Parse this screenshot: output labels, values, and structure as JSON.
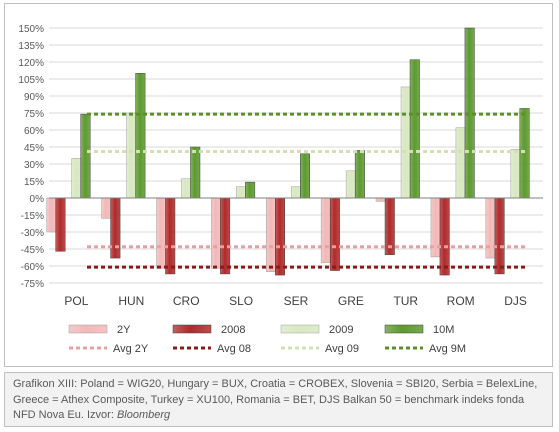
{
  "chart_data": {
    "type": "bar",
    "categories": [
      "POL",
      "HUN",
      "CRO",
      "SLO",
      "SER",
      "GRE",
      "TUR",
      "ROM",
      "DJS"
    ],
    "series": [
      {
        "name": "2Y",
        "color": "#f2b8b8",
        "values": [
          -30,
          -18,
          -62,
          -62,
          -65,
          -57,
          -3,
          -52,
          -53
        ]
      },
      {
        "name": "2008",
        "color": "#b02a2a",
        "values": [
          -47,
          -53,
          -67,
          -67,
          -68,
          -64,
          -50,
          -68,
          -67
        ]
      },
      {
        "name": "2009",
        "color": "#d8e8c0",
        "values": [
          35,
          75,
          17,
          10,
          10,
          24,
          98,
          62,
          43
        ]
      },
      {
        "name": "10M",
        "color": "#5c9a2e",
        "values": [
          74,
          110,
          45,
          14,
          39,
          42,
          122,
          150,
          79
        ]
      }
    ],
    "averages": [
      {
        "name": "Avg 2Y",
        "color": "#e8a0a0",
        "value": -43
      },
      {
        "name": "Avg 08",
        "color": "#8b1a1a",
        "value": -61
      },
      {
        "name": "Avg 09",
        "color": "#d4e0b4",
        "value": 41
      },
      {
        "name": "Avg 9M",
        "color": "#5c8f2a",
        "value": 74
      }
    ],
    "ylim": [
      -75,
      150
    ],
    "yticks": [
      150,
      135,
      120,
      105,
      90,
      75,
      60,
      45,
      30,
      15,
      0,
      -15,
      -30,
      -45,
      -60,
      -75
    ],
    "ytick_labels": [
      "150%",
      "135%",
      "120%",
      "105%",
      "90%",
      "75%",
      "60%",
      "45%",
      "30%",
      "15%",
      "0%",
      "-15%",
      "-30%",
      "-45%",
      "-60%",
      "-75%"
    ],
    "grid": true,
    "legend_placement": "bottom"
  },
  "caption": {
    "text": "Grafikon XIII: Poland = WIG20, Hungary = BUX, Croatia = CROBEX, Slovenia = SBI20, Serbia = BelexLine, Greece = Athex Composite, Turkey = XU100, Romania = BET, DJS Balkan 50  = benchmark indeks fonda NFD Nova Eu.",
    "source_label": "Izvor: ",
    "source_name": "Bloomberg"
  }
}
